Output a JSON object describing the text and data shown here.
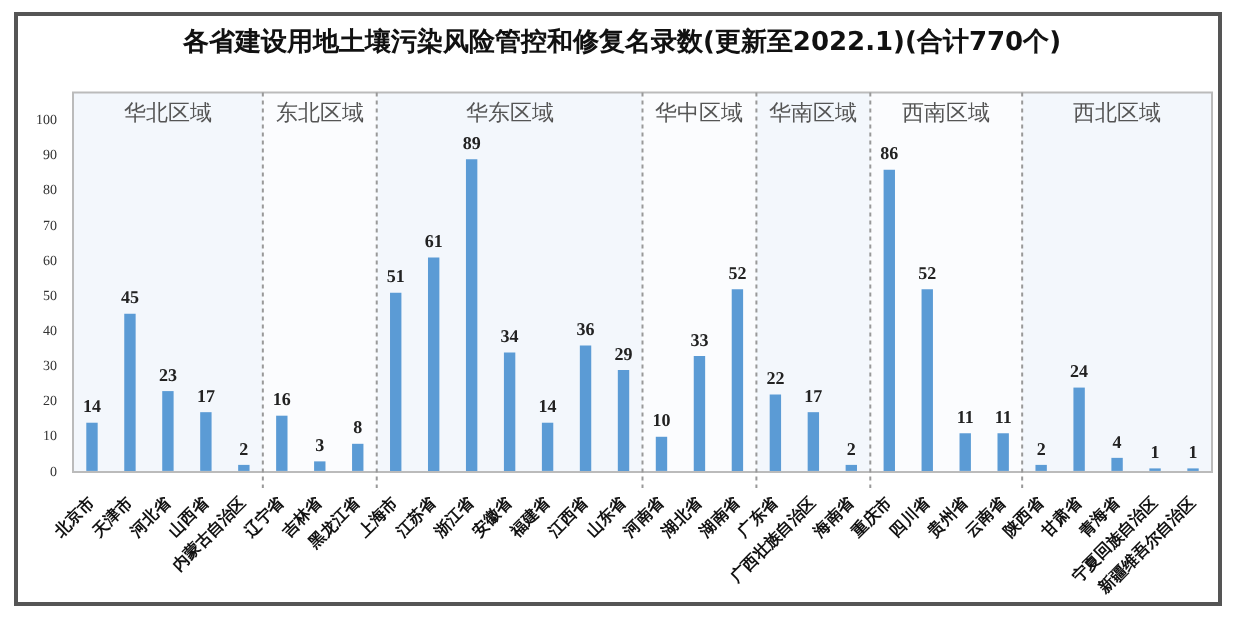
{
  "chart_data": {
    "type": "bar",
    "title": "各省建设用地土壤污染风险管控和修复名录数(更新至2022.1)(合计770个)",
    "categories": [
      "北京市",
      "天津市",
      "河北省",
      "山西省",
      "内蒙古自治区",
      "辽宁省",
      "吉林省",
      "黑龙江省",
      "上海市",
      "江苏省",
      "浙江省",
      "安徽省",
      "福建省",
      "江西省",
      "山东省",
      "河南省",
      "湖北省",
      "湖南省",
      "广东省",
      "广西壮族自治区",
      "海南省",
      "重庆市",
      "四川省",
      "贵州省",
      "云南省",
      "陕西省",
      "甘肃省",
      "青海省",
      "宁夏回族自治区",
      "新疆维吾尔自治区"
    ],
    "values": [
      14,
      45,
      23,
      17,
      2,
      16,
      3,
      8,
      51,
      61,
      89,
      34,
      14,
      36,
      29,
      10,
      33,
      52,
      22,
      17,
      2,
      86,
      52,
      11,
      11,
      2,
      24,
      4,
      1,
      1
    ],
    "color": "#5b9bd5",
    "ylim": [
      0,
      108
    ],
    "yticks": [
      0,
      10,
      20,
      30,
      40,
      50,
      60,
      70,
      80,
      90,
      100
    ],
    "grid": "y",
    "data_labels": true,
    "legend": false,
    "bands": [
      {
        "axis": "x",
        "from": "北京市",
        "to": "内蒙古自治区",
        "label": "华北区域",
        "color": "#f3f7fc"
      },
      {
        "axis": "x",
        "from": "辽宁省",
        "to": "黑龙江省",
        "label": "东北区域",
        "color": "#fbfcfe"
      },
      {
        "axis": "x",
        "from": "上海市",
        "to": "山东省",
        "label": "华东区域",
        "color": "#f3f7fc"
      },
      {
        "axis": "x",
        "from": "河南省",
        "to": "湖南省",
        "label": "华中区域",
        "color": "#fbfcfe"
      },
      {
        "axis": "x",
        "from": "广东省",
        "to": "海南省",
        "label": "华南区域",
        "color": "#f3f7fc"
      },
      {
        "axis": "x",
        "from": "重庆市",
        "to": "云南省",
        "label": "西南区域",
        "color": "#fbfcfe"
      },
      {
        "axis": "x",
        "from": "陕西省",
        "to": "新疆维吾尔自治区",
        "label": "西北区域",
        "color": "#f3f7fc"
      }
    ]
  }
}
